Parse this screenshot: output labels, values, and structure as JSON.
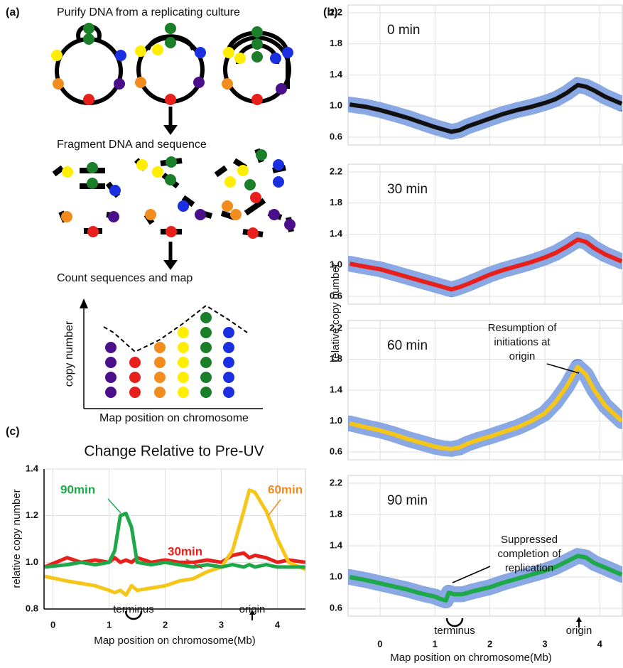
{
  "panel_a": {
    "label": "(a)",
    "steps": [
      "Purify DNA from a replicating culture",
      "Fragment DNA and sequence",
      "Count sequences and map"
    ],
    "y_axis_label": "copy number",
    "x_axis_label": "Map position on chromosome"
  },
  "panel_b_label": "(b)",
  "panel_c_label": "(c)",
  "chart_data": [
    {
      "type": "line",
      "title": "0 min",
      "ylabel": "relative copy number",
      "x": [
        -0.55,
        -0.25,
        0,
        0.25,
        0.5,
        0.75,
        1,
        1.15,
        1.3,
        1.45,
        1.6,
        1.8,
        2,
        2.25,
        2.5,
        2.75,
        3,
        3.2,
        3.4,
        3.6,
        3.75,
        3.9,
        4.1,
        4.4
      ],
      "values": [
        1.02,
        0.99,
        0.95,
        0.9,
        0.85,
        0.79,
        0.73,
        0.7,
        0.67,
        0.69,
        0.74,
        0.79,
        0.84,
        0.9,
        0.95,
        0.99,
        1.04,
        1.09,
        1.17,
        1.27,
        1.25,
        1.2,
        1.12,
        1.03
      ],
      "color": "#111111",
      "scatter_color": "#4a78d0",
      "xlim": [
        -0.58,
        4.41
      ],
      "ylim": [
        0.5,
        2.3
      ],
      "yticks": [
        {
          "value": 0.6,
          "label": "0.6"
        },
        {
          "value": 1,
          "label": "1.0"
        },
        1.4,
        1.8,
        2.2
      ],
      "grid": true
    },
    {
      "type": "line",
      "title": "30 min",
      "x": [
        -0.55,
        -0.25,
        0,
        0.25,
        0.5,
        0.75,
        1,
        1.15,
        1.3,
        1.45,
        1.6,
        1.8,
        2,
        2.25,
        2.5,
        2.75,
        3,
        3.2,
        3.4,
        3.6,
        3.75,
        3.9,
        4.1,
        4.4
      ],
      "values": [
        1.02,
        0.98,
        0.95,
        0.9,
        0.85,
        0.8,
        0.75,
        0.72,
        0.69,
        0.72,
        0.76,
        0.82,
        0.88,
        0.94,
        0.99,
        1.04,
        1.1,
        1.16,
        1.24,
        1.33,
        1.3,
        1.22,
        1.14,
        1.05
      ],
      "color": "#e8201c",
      "scatter_color": "#4a78d0",
      "xlim": [
        -0.58,
        4.41
      ],
      "ylim": [
        0.5,
        2.3
      ],
      "yticks": [
        0.6,
        {
          "value": 1,
          "label": "1.0"
        },
        1.4,
        1.8,
        2.2
      ],
      "grid": true
    },
    {
      "type": "line",
      "title": "60 min",
      "annotation": [
        "Resumption of",
        "initiations at",
        "origin"
      ],
      "x": [
        -0.55,
        -0.25,
        0,
        0.25,
        0.5,
        0.75,
        1,
        1.15,
        1.3,
        1.45,
        1.6,
        1.8,
        2,
        2.25,
        2.5,
        2.75,
        3,
        3.2,
        3.4,
        3.6,
        3.75,
        3.9,
        4.1,
        4.4
      ],
      "values": [
        0.97,
        0.92,
        0.88,
        0.83,
        0.77,
        0.72,
        0.67,
        0.65,
        0.64,
        0.66,
        0.71,
        0.76,
        0.8,
        0.86,
        0.92,
        1.0,
        1.1,
        1.25,
        1.45,
        1.7,
        1.6,
        1.4,
        1.2,
        1.0
      ],
      "color": "#f5c518",
      "scatter_color": "#4a78d0",
      "xlim": [
        -0.58,
        4.41
      ],
      "ylim": [
        0.5,
        2.3
      ],
      "yticks": [
        0.6,
        {
          "value": 1,
          "label": "1.0"
        },
        1.4,
        1.8,
        2.2
      ],
      "grid": true
    },
    {
      "type": "line",
      "title": "90 min",
      "annotation": [
        "Suppressed",
        "completion of",
        "replication"
      ],
      "landmarks": [
        "terminus",
        "origin"
      ],
      "xlabel": "Map position on chromosome(Mb)",
      "x": [
        -0.55,
        -0.25,
        0,
        0.25,
        0.5,
        0.75,
        1,
        1.1,
        1.2,
        1.25,
        1.35,
        1.5,
        1.7,
        2,
        2.25,
        2.5,
        2.75,
        3,
        3.2,
        3.4,
        3.6,
        3.75,
        3.9,
        4.1,
        4.4
      ],
      "values": [
        1.0,
        0.96,
        0.92,
        0.88,
        0.84,
        0.79,
        0.75,
        0.72,
        0.7,
        0.8,
        0.78,
        0.78,
        0.82,
        0.87,
        0.93,
        0.98,
        1.03,
        1.08,
        1.13,
        1.2,
        1.27,
        1.25,
        1.18,
        1.12,
        1.03
      ],
      "color": "#1fa84a",
      "scatter_color": "#4a78d0",
      "xlim": [
        -0.58,
        4.41
      ],
      "ylim": [
        0.5,
        2.3
      ],
      "xticks": [
        0,
        1,
        2,
        3,
        4
      ],
      "yticks": [
        0.6,
        {
          "value": 1,
          "label": "1.0"
        },
        1.4,
        1.8,
        2.2
      ],
      "grid": true
    },
    {
      "type": "line",
      "title": "Change Relative to Pre-UV",
      "ylabel": "relative copy number",
      "xlabel": "Map position on chromosome(Mb)",
      "landmarks": [
        "terminus",
        "origin"
      ],
      "x": [
        -0.15,
        0.25,
        0.5,
        0.75,
        1,
        1.1,
        1.2,
        1.3,
        1.4,
        1.5,
        1.75,
        2,
        2.25,
        2.5,
        2.75,
        3,
        3.2,
        3.4,
        3.5,
        3.6,
        3.8,
        4,
        4.2,
        4.5
      ],
      "series": [
        {
          "name": "30min",
          "color": "#e8201c",
          "label_color": "#e8201c",
          "values": [
            0.98,
            1.02,
            1.0,
            1.01,
            1.0,
            1.02,
            1.0,
            1.01,
            1.0,
            1.02,
            1.0,
            1.01,
            1.0,
            1.0,
            1.01,
            1.0,
            1.03,
            1.04,
            1.02,
            1.03,
            1.02,
            1.0,
            1.01,
            1.0
          ]
        },
        {
          "name": "60min",
          "color": "#f5c518",
          "label_color": "#f28c1e",
          "values": [
            0.94,
            0.92,
            0.91,
            0.9,
            0.88,
            0.87,
            0.88,
            0.86,
            0.9,
            0.88,
            0.89,
            0.9,
            0.92,
            0.93,
            0.96,
            0.98,
            1.05,
            1.22,
            1.31,
            1.3,
            1.22,
            1.1,
            1.0,
            0.97
          ]
        },
        {
          "name": "90min",
          "color": "#1fa84a",
          "label_color": "#1fa84a",
          "values": [
            0.98,
            0.99,
            1.0,
            0.99,
            1.0,
            1.05,
            1.2,
            1.21,
            1.15,
            1.0,
            0.99,
            1.0,
            0.99,
            0.98,
            0.99,
            0.98,
            0.99,
            0.98,
            0.99,
            0.98,
            0.99,
            0.98,
            0.98,
            0.98
          ]
        }
      ],
      "xlim": [
        -0.16,
        4.5
      ],
      "ylim": [
        0.8,
        1.4
      ],
      "xticks": [
        0,
        1,
        2,
        3,
        4
      ],
      "yticks": [
        0.8,
        {
          "value": 1,
          "label": "1.0"
        },
        1.2,
        1.4
      ],
      "grid": true
    }
  ]
}
